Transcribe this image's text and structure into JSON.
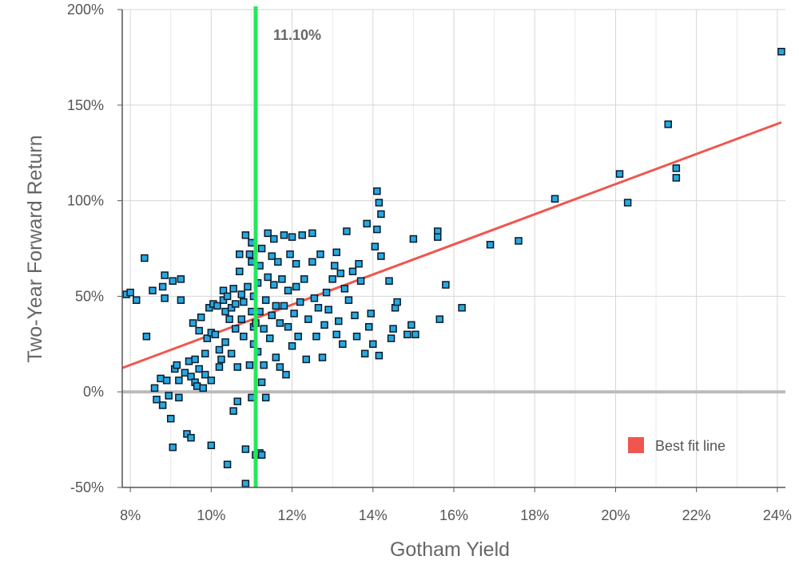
{
  "chart_data": {
    "type": "scatter",
    "title": "",
    "xlabel": "Gotham Yield",
    "ylabel": "Two-Year Forward Return",
    "xlim": [
      7.8,
      24.2
    ],
    "ylim": [
      -50,
      200
    ],
    "x_ticks": [
      8,
      10,
      12,
      14,
      16,
      18,
      20,
      22,
      24
    ],
    "x_tick_labels": [
      "8%",
      "10%",
      "12%",
      "14%",
      "16%",
      "18%",
      "20%",
      "22%",
      "24%"
    ],
    "y_ticks": [
      -50,
      0,
      50,
      100,
      150,
      200
    ],
    "y_tick_labels": [
      "-50%",
      "0%",
      "50%",
      "100%",
      "150%",
      "200%"
    ],
    "grid": true,
    "legend_position": "bottom-right",
    "colors": {
      "points": "#29a8e0",
      "point_edge": "#0a1a2a",
      "fit_line": "#f0564e",
      "vline": "#22e85a",
      "zero_line": "#bbbbbb",
      "grid": "#d6d6d6"
    },
    "vertical_marker": {
      "x": 11.1,
      "label": "11.10%"
    },
    "best_fit": {
      "name": "Best fit line",
      "x1": 7.8,
      "y1": 12.5,
      "x2": 24.1,
      "y2": 141
    },
    "points": [
      [
        7.9,
        51
      ],
      [
        8.0,
        52
      ],
      [
        8.15,
        48
      ],
      [
        8.35,
        70
      ],
      [
        8.4,
        29
      ],
      [
        8.55,
        53
      ],
      [
        8.6,
        2
      ],
      [
        8.65,
        -4
      ],
      [
        8.75,
        7
      ],
      [
        8.8,
        55
      ],
      [
        8.85,
        61
      ],
      [
        8.85,
        49
      ],
      [
        8.8,
        -7
      ],
      [
        8.9,
        6
      ],
      [
        8.95,
        -2
      ],
      [
        9.05,
        58
      ],
      [
        9.0,
        -14
      ],
      [
        9.05,
        -29
      ],
      [
        9.1,
        12
      ],
      [
        9.15,
        14
      ],
      [
        9.2,
        6
      ],
      [
        9.2,
        -3
      ],
      [
        9.25,
        48
      ],
      [
        9.25,
        59
      ],
      [
        9.35,
        10
      ],
      [
        9.4,
        -22
      ],
      [
        9.5,
        -24
      ],
      [
        9.45,
        16
      ],
      [
        9.5,
        8
      ],
      [
        9.55,
        36
      ],
      [
        9.6,
        17
      ],
      [
        9.6,
        5
      ],
      [
        9.65,
        3
      ],
      [
        9.7,
        12
      ],
      [
        9.7,
        32
      ],
      [
        9.75,
        39
      ],
      [
        9.8,
        2
      ],
      [
        9.85,
        20
      ],
      [
        9.85,
        9
      ],
      [
        9.9,
        28
      ],
      [
        9.95,
        44
      ],
      [
        10.0,
        6
      ],
      [
        10.0,
        -28
      ],
      [
        10.0,
        31
      ],
      [
        10.05,
        46
      ],
      [
        10.1,
        30
      ],
      [
        10.15,
        45
      ],
      [
        10.2,
        22
      ],
      [
        10.2,
        13
      ],
      [
        10.25,
        17
      ],
      [
        10.3,
        53
      ],
      [
        10.3,
        48
      ],
      [
        10.35,
        42
      ],
      [
        10.35,
        26
      ],
      [
        10.4,
        -38
      ],
      [
        10.4,
        50
      ],
      [
        10.45,
        38
      ],
      [
        10.5,
        44
      ],
      [
        10.5,
        20
      ],
      [
        10.55,
        -10
      ],
      [
        10.55,
        54
      ],
      [
        10.6,
        46
      ],
      [
        10.6,
        33
      ],
      [
        10.65,
        -5
      ],
      [
        10.65,
        13
      ],
      [
        10.7,
        63
      ],
      [
        10.7,
        72
      ],
      [
        10.75,
        51
      ],
      [
        10.75,
        38
      ],
      [
        10.8,
        29
      ],
      [
        10.8,
        47
      ],
      [
        10.85,
        -48
      ],
      [
        10.85,
        -30
      ],
      [
        10.85,
        82
      ],
      [
        10.9,
        55
      ],
      [
        10.95,
        72
      ],
      [
        10.95,
        14
      ],
      [
        11.0,
        78
      ],
      [
        11.0,
        42
      ],
      [
        11.0,
        68
      ],
      [
        11.0,
        -3
      ],
      [
        11.05,
        50
      ],
      [
        11.05,
        25
      ],
      [
        11.05,
        34
      ],
      [
        11.1,
        36
      ],
      [
        11.1,
        -33
      ],
      [
        11.15,
        57
      ],
      [
        11.15,
        21
      ],
      [
        11.2,
        -32
      ],
      [
        11.2,
        66
      ],
      [
        11.2,
        42
      ],
      [
        11.25,
        -33
      ],
      [
        11.25,
        75
      ],
      [
        11.25,
        5
      ],
      [
        11.3,
        33
      ],
      [
        11.3,
        14
      ],
      [
        11.35,
        -3
      ],
      [
        11.35,
        48
      ],
      [
        11.4,
        83
      ],
      [
        11.4,
        60
      ],
      [
        11.45,
        28
      ],
      [
        11.5,
        71
      ],
      [
        11.5,
        40
      ],
      [
        11.55,
        80
      ],
      [
        11.55,
        56
      ],
      [
        11.6,
        45
      ],
      [
        11.6,
        18
      ],
      [
        11.65,
        68
      ],
      [
        11.7,
        36
      ],
      [
        11.7,
        13
      ],
      [
        11.75,
        59
      ],
      [
        11.8,
        45
      ],
      [
        11.8,
        82
      ],
      [
        11.85,
        9
      ],
      [
        11.9,
        53
      ],
      [
        11.9,
        34
      ],
      [
        11.95,
        72
      ],
      [
        12.0,
        81
      ],
      [
        12.0,
        24
      ],
      [
        12.05,
        41
      ],
      [
        12.1,
        67
      ],
      [
        12.1,
        55
      ],
      [
        12.15,
        29
      ],
      [
        12.2,
        47
      ],
      [
        12.25,
        82
      ],
      [
        12.3,
        59
      ],
      [
        12.35,
        17
      ],
      [
        12.4,
        38
      ],
      [
        12.5,
        68
      ],
      [
        12.5,
        83
      ],
      [
        12.55,
        49
      ],
      [
        12.6,
        29
      ],
      [
        12.65,
        44
      ],
      [
        12.7,
        72
      ],
      [
        12.75,
        18
      ],
      [
        12.8,
        35
      ],
      [
        12.85,
        52
      ],
      [
        12.9,
        43
      ],
      [
        13.0,
        59
      ],
      [
        13.05,
        66
      ],
      [
        13.1,
        30
      ],
      [
        13.1,
        73
      ],
      [
        13.15,
        37
      ],
      [
        13.2,
        62
      ],
      [
        13.25,
        25
      ],
      [
        13.3,
        54
      ],
      [
        13.35,
        84
      ],
      [
        13.4,
        48
      ],
      [
        13.5,
        63
      ],
      [
        13.55,
        40
      ],
      [
        13.6,
        29
      ],
      [
        13.65,
        67
      ],
      [
        13.7,
        58
      ],
      [
        13.8,
        20
      ],
      [
        13.85,
        88
      ],
      [
        13.9,
        34
      ],
      [
        13.95,
        41
      ],
      [
        14.0,
        25
      ],
      [
        14.05,
        76
      ],
      [
        14.1,
        85
      ],
      [
        14.1,
        105
      ],
      [
        14.15,
        99
      ],
      [
        14.15,
        19
      ],
      [
        14.2,
        93
      ],
      [
        14.2,
        71
      ],
      [
        14.4,
        58
      ],
      [
        14.45,
        28
      ],
      [
        14.5,
        33
      ],
      [
        14.55,
        44
      ],
      [
        14.6,
        47
      ],
      [
        14.85,
        30
      ],
      [
        14.95,
        35
      ],
      [
        15.0,
        80
      ],
      [
        15.05,
        30
      ],
      [
        15.6,
        84
      ],
      [
        15.6,
        81
      ],
      [
        15.65,
        38
      ],
      [
        15.8,
        56
      ],
      [
        16.2,
        44
      ],
      [
        16.9,
        77
      ],
      [
        17.6,
        79
      ],
      [
        18.5,
        101
      ],
      [
        20.1,
        114
      ],
      [
        20.3,
        99
      ],
      [
        21.3,
        140
      ],
      [
        21.5,
        117
      ],
      [
        21.5,
        112
      ],
      [
        24.1,
        178
      ]
    ]
  }
}
